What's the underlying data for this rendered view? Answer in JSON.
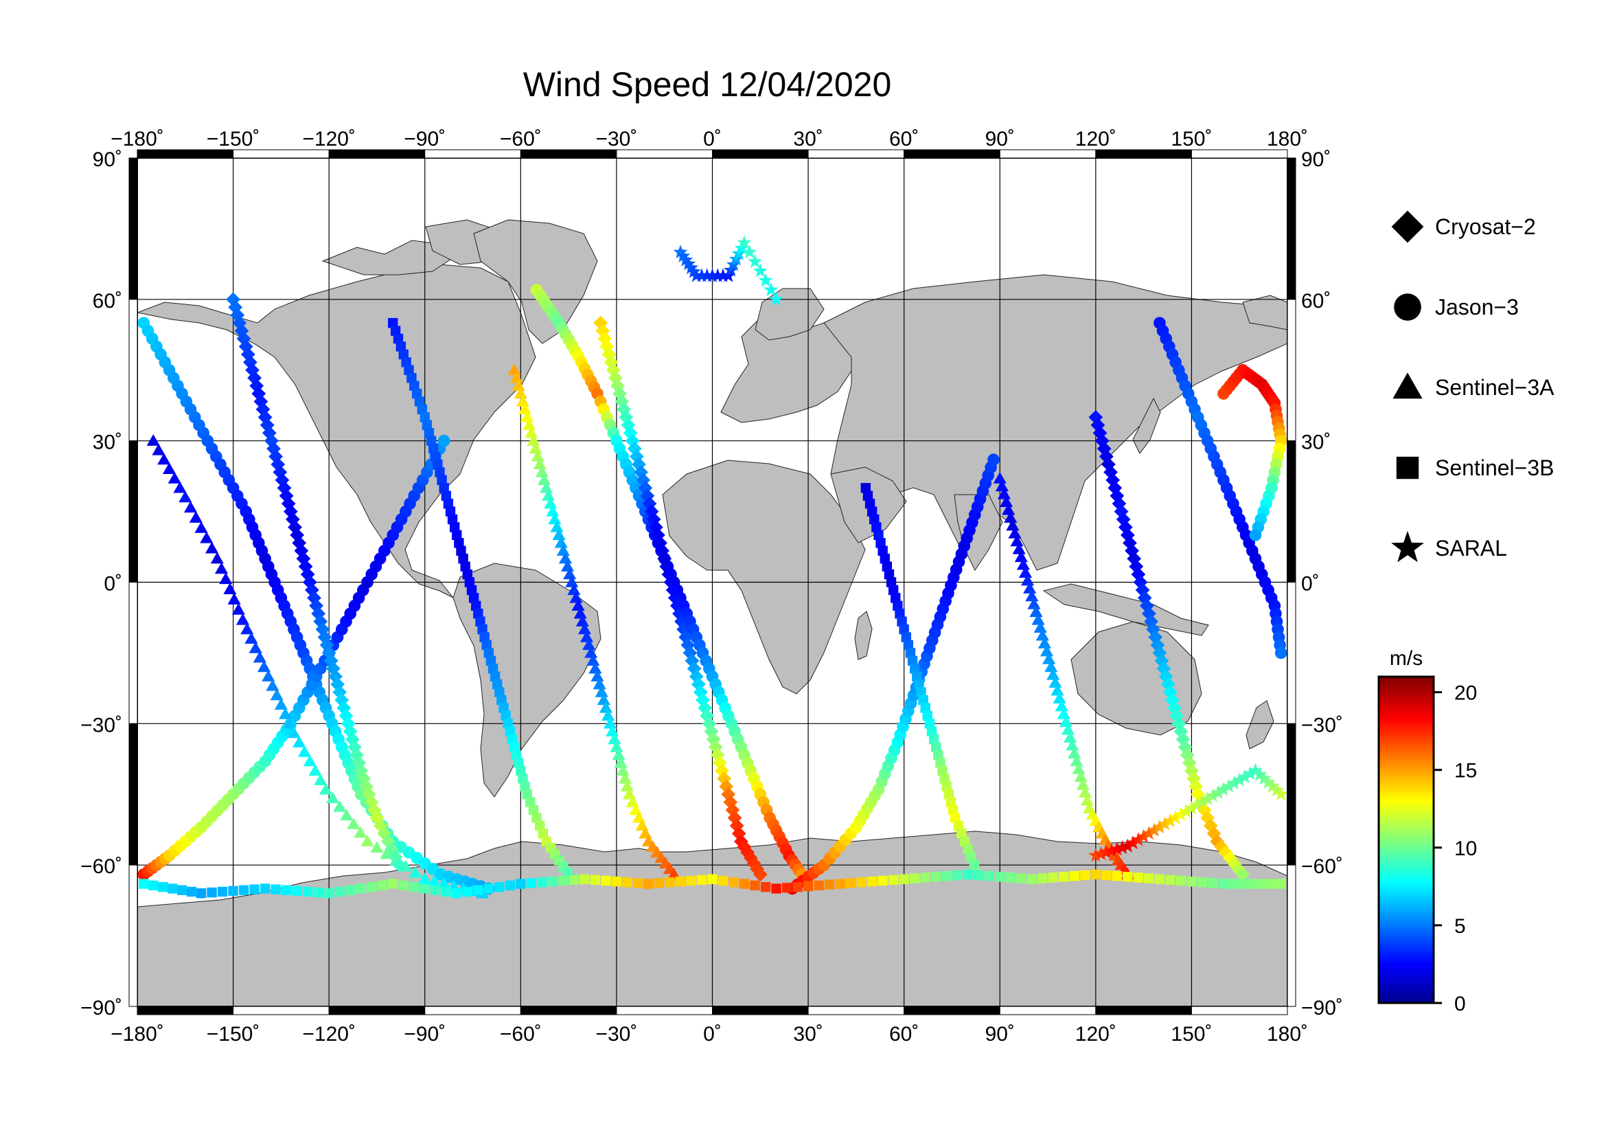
{
  "title": "Wind Speed 12/04/2020",
  "map": {
    "projection": "equirectangular",
    "lon_range": [
      -180,
      180
    ],
    "lat_range": [
      -90,
      90
    ],
    "lon_ticks": [
      -180,
      -150,
      -120,
      -90,
      -60,
      -30,
      0,
      30,
      60,
      90,
      120,
      150,
      180
    ],
    "lat_ticks": [
      90,
      60,
      30,
      0,
      -30,
      -60,
      -90
    ],
    "lon_tick_labels": [
      "−180˚",
      "−150˚",
      "−120˚",
      "−90˚",
      "−60˚",
      "−30˚",
      "0˚",
      "30˚",
      "60˚",
      "90˚",
      "120˚",
      "150˚",
      "180˚"
    ],
    "lat_tick_labels_left": [
      "90˚",
      "60˚",
      "30˚",
      "0˚",
      "−30˚",
      "−60˚",
      "−90˚"
    ],
    "lat_tick_labels_right": [
      "90˚",
      "60˚",
      "30˚",
      "0˚",
      "−30˚",
      "−60˚",
      "−90˚"
    ],
    "grid": true,
    "land_color": "#bebebe",
    "ocean_color": "#ffffff"
  },
  "legend": {
    "placement": "right",
    "items": [
      {
        "label": "Cryosat−2",
        "marker": "diamond"
      },
      {
        "label": "Jason−3",
        "marker": "circle"
      },
      {
        "label": "Sentinel−3A",
        "marker": "triangle"
      },
      {
        "label": "Sentinel−3B",
        "marker": "square"
      },
      {
        "label": "SARAL",
        "marker": "star"
      }
    ]
  },
  "colorbar": {
    "unit": "m/s",
    "min": 0,
    "max": 21,
    "tick_values": [
      0,
      5,
      10,
      15,
      20
    ],
    "tick_labels": [
      "0",
      "5",
      "10",
      "15",
      "20"
    ],
    "colormap": "jet"
  },
  "chart_data": {
    "type": "scatter",
    "title": "Wind Speed 12/04/2020",
    "xlabel": "",
    "ylabel": "",
    "xlim": [
      -180,
      180
    ],
    "ylim": [
      -90,
      90
    ],
    "value_unit": "m/s",
    "tracks": [
      {
        "satellite": "Jason−3",
        "marker": "circle",
        "points": [
          [
            -178,
            55,
            7
          ],
          [
            -170,
            45,
            6
          ],
          [
            -162,
            35,
            5
          ],
          [
            -154,
            25,
            4
          ],
          [
            -146,
            15,
            3
          ],
          [
            -140,
            5,
            2
          ],
          [
            -134,
            -5,
            3
          ],
          [
            -128,
            -15,
            4
          ],
          [
            -122,
            -25,
            6
          ],
          [
            -116,
            -35,
            8
          ],
          [
            -110,
            -45,
            10
          ],
          [
            -100,
            -55,
            9
          ],
          [
            -85,
            -62,
            7
          ],
          [
            -70,
            -65,
            6
          ]
        ]
      },
      {
        "satellite": "Jason−3",
        "marker": "circle",
        "points": [
          [
            -178,
            -62,
            18
          ],
          [
            -170,
            -58,
            14
          ],
          [
            -160,
            -52,
            12
          ],
          [
            -150,
            -45,
            11
          ],
          [
            -140,
            -38,
            9
          ],
          [
            -132,
            -30,
            7
          ],
          [
            -124,
            -20,
            5
          ],
          [
            -116,
            -10,
            3
          ],
          [
            -108,
            0,
            2
          ],
          [
            -100,
            10,
            3
          ],
          [
            -92,
            20,
            4
          ],
          [
            -84,
            30,
            6
          ]
        ]
      },
      {
        "satellite": "Sentinel−3A",
        "marker": "triangle",
        "points": [
          [
            -175,
            30,
            2
          ],
          [
            -165,
            18,
            3
          ],
          [
            -155,
            5,
            2
          ],
          [
            -147,
            -8,
            3
          ],
          [
            -139,
            -20,
            5
          ],
          [
            -131,
            -32,
            7
          ],
          [
            -121,
            -44,
            9
          ],
          [
            -108,
            -55,
            11
          ],
          [
            -90,
            -63,
            8
          ],
          [
            -72,
            -66,
            7
          ]
        ]
      },
      {
        "satellite": "Cryosat−2",
        "marker": "diamond",
        "points": [
          [
            -150,
            60,
            5
          ],
          [
            -146,
            50,
            4
          ],
          [
            -142,
            40,
            3
          ],
          [
            -138,
            30,
            4
          ],
          [
            -134,
            20,
            3
          ],
          [
            -130,
            10,
            2
          ],
          [
            -126,
            0,
            3
          ],
          [
            -122,
            -10,
            5
          ],
          [
            -118,
            -20,
            6
          ],
          [
            -114,
            -30,
            8
          ],
          [
            -110,
            -40,
            10
          ],
          [
            -105,
            -50,
            12
          ],
          [
            -98,
            -60,
            9
          ]
        ]
      },
      {
        "satellite": "Sentinel−3B",
        "marker": "square",
        "points": [
          [
            -100,
            55,
            3
          ],
          [
            -95,
            45,
            4
          ],
          [
            -90,
            35,
            5
          ],
          [
            -86,
            25,
            4
          ],
          [
            -82,
            15,
            3
          ],
          [
            -78,
            5,
            2
          ],
          [
            -74,
            -5,
            3
          ],
          [
            -70,
            -15,
            5
          ],
          [
            -66,
            -25,
            6
          ],
          [
            -62,
            -35,
            8
          ],
          [
            -58,
            -45,
            10
          ],
          [
            -52,
            -55,
            12
          ],
          [
            -44,
            -63,
            9
          ]
        ]
      },
      {
        "satellite": "Jason−3",
        "marker": "circle",
        "points": [
          [
            -55,
            62,
            12
          ],
          [
            -48,
            55,
            10
          ],
          [
            -42,
            48,
            13
          ],
          [
            -36,
            40,
            16
          ],
          [
            -30,
            30,
            8
          ],
          [
            -24,
            20,
            6
          ],
          [
            -18,
            10,
            3
          ],
          [
            -12,
            0,
            2
          ],
          [
            -6,
            -10,
            4
          ],
          [
            0,
            -20,
            6
          ],
          [
            6,
            -30,
            9
          ],
          [
            12,
            -40,
            12
          ],
          [
            18,
            -50,
            16
          ],
          [
            24,
            -58,
            18
          ],
          [
            30,
            -64,
            14
          ]
        ]
      },
      {
        "satellite": "Sentinel−3A",
        "marker": "triangle",
        "points": [
          [
            -62,
            45,
            15
          ],
          [
            -58,
            35,
            13
          ],
          [
            -54,
            25,
            11
          ],
          [
            -50,
            15,
            8
          ],
          [
            -46,
            5,
            5
          ],
          [
            -42,
            -5,
            3
          ],
          [
            -38,
            -15,
            4
          ],
          [
            -34,
            -25,
            6
          ],
          [
            -30,
            -35,
            9
          ],
          [
            -26,
            -45,
            12
          ],
          [
            -20,
            -55,
            15
          ],
          [
            -12,
            -62,
            17
          ]
        ]
      },
      {
        "satellite": "Cryosat−2",
        "marker": "diamond",
        "points": [
          [
            -35,
            55,
            14
          ],
          [
            -31,
            45,
            12
          ],
          [
            -27,
            35,
            9
          ],
          [
            -23,
            25,
            6
          ],
          [
            -19,
            15,
            3
          ],
          [
            -15,
            5,
            2
          ],
          [
            -11,
            -5,
            3
          ],
          [
            -7,
            -15,
            5
          ],
          [
            -3,
            -25,
            8
          ],
          [
            1,
            -35,
            11
          ],
          [
            5,
            -45,
            16
          ],
          [
            9,
            -55,
            18
          ],
          [
            15,
            -62,
            17
          ]
        ]
      },
      {
        "satellite": "SARAL",
        "marker": "star",
        "points": [
          [
            -10,
            70,
            5
          ],
          [
            -5,
            65,
            4
          ],
          [
            5,
            65,
            3
          ],
          [
            10,
            72,
            9
          ],
          [
            20,
            60,
            8
          ]
        ]
      },
      {
        "satellite": "Jason−3",
        "marker": "circle",
        "points": [
          [
            25,
            -65,
            19
          ],
          [
            35,
            -60,
            16
          ],
          [
            45,
            -52,
            13
          ],
          [
            52,
            -44,
            11
          ],
          [
            58,
            -34,
            8
          ],
          [
            63,
            -24,
            6
          ],
          [
            68,
            -14,
            4
          ],
          [
            73,
            -4,
            3
          ],
          [
            78,
            6,
            2
          ],
          [
            83,
            16,
            3
          ],
          [
            88,
            26,
            4
          ]
        ]
      },
      {
        "satellite": "Sentinel−3B",
        "marker": "square",
        "points": [
          [
            48,
            20,
            2
          ],
          [
            52,
            10,
            3
          ],
          [
            56,
            0,
            2
          ],
          [
            60,
            -10,
            4
          ],
          [
            64,
            -20,
            6
          ],
          [
            68,
            -30,
            8
          ],
          [
            72,
            -40,
            11
          ],
          [
            76,
            -50,
            13
          ],
          [
            82,
            -60,
            10
          ]
        ]
      },
      {
        "satellite": "Sentinel−3A",
        "marker": "triangle",
        "points": [
          [
            90,
            22,
            3
          ],
          [
            94,
            12,
            2
          ],
          [
            98,
            2,
            3
          ],
          [
            102,
            -8,
            5
          ],
          [
            106,
            -18,
            6
          ],
          [
            110,
            -28,
            8
          ],
          [
            114,
            -38,
            10
          ],
          [
            118,
            -48,
            12
          ],
          [
            124,
            -56,
            16
          ],
          [
            130,
            -62,
            18
          ]
        ]
      },
      {
        "satellite": "Cryosat−2",
        "marker": "diamond",
        "points": [
          [
            120,
            35,
            3
          ],
          [
            124,
            25,
            2
          ],
          [
            128,
            15,
            3
          ],
          [
            132,
            5,
            2
          ],
          [
            136,
            -5,
            4
          ],
          [
            140,
            -15,
            6
          ],
          [
            144,
            -25,
            8
          ],
          [
            148,
            -35,
            10
          ],
          [
            152,
            -45,
            13
          ],
          [
            158,
            -55,
            15
          ],
          [
            166,
            -62,
            11
          ]
        ]
      },
      {
        "satellite": "Jason−3",
        "marker": "circle",
        "points": [
          [
            140,
            55,
            3
          ],
          [
            146,
            45,
            4
          ],
          [
            152,
            35,
            5
          ],
          [
            158,
            25,
            4
          ],
          [
            164,
            15,
            3
          ],
          [
            170,
            5,
            2
          ],
          [
            176,
            -5,
            3
          ],
          [
            178,
            -15,
            5
          ]
        ]
      },
      {
        "satellite": "Jason−3",
        "marker": "circle",
        "points": [
          [
            160,
            40,
            17
          ],
          [
            166,
            45,
            18
          ],
          [
            172,
            42,
            19
          ],
          [
            176,
            38,
            18
          ],
          [
            178,
            30,
            14
          ],
          [
            175,
            20,
            9
          ],
          [
            170,
            10,
            6
          ]
        ]
      },
      {
        "satellite": "SARAL",
        "marker": "star",
        "points": [
          [
            120,
            -58,
            17
          ],
          [
            130,
            -56,
            19
          ],
          [
            140,
            -52,
            15
          ],
          [
            150,
            -48,
            12
          ],
          [
            160,
            -44,
            10
          ],
          [
            170,
            -40,
            9
          ],
          [
            178,
            -45,
            12
          ]
        ]
      },
      {
        "satellite": "Sentinel−3B",
        "marker": "square",
        "points": [
          [
            -178,
            -64,
            8
          ],
          [
            -160,
            -66,
            6
          ],
          [
            -140,
            -65,
            7
          ],
          [
            -120,
            -66,
            9
          ],
          [
            -100,
            -64,
            11
          ],
          [
            -80,
            -66,
            8
          ],
          [
            -60,
            -64,
            7
          ],
          [
            -40,
            -63,
            12
          ],
          [
            -20,
            -64,
            15
          ],
          [
            0,
            -63,
            13
          ],
          [
            20,
            -65,
            18
          ],
          [
            40,
            -64,
            15
          ],
          [
            60,
            -63,
            12
          ],
          [
            80,
            -62,
            9
          ],
          [
            100,
            -63,
            11
          ],
          [
            120,
            -62,
            14
          ],
          [
            140,
            -63,
            12
          ],
          [
            160,
            -64,
            10
          ],
          [
            178,
            -64,
            11
          ]
        ]
      }
    ]
  }
}
